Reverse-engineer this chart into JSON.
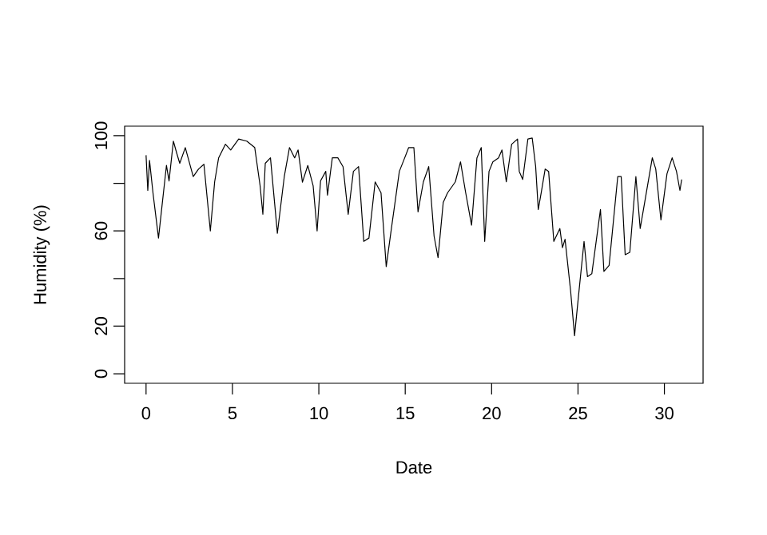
{
  "chart_data": {
    "type": "line",
    "xlabel": "Date",
    "ylabel": "Humidity (%)",
    "color": "#000000",
    "x": [
      0,
      0.1,
      0.2,
      0.4,
      0.72,
      0.9,
      1.18,
      1.33,
      1.58,
      1.8,
      1.95,
      2.27,
      2.73,
      3.04,
      3.35,
      3.72,
      3.97,
      4.2,
      4.59,
      4.9,
      5.36,
      5.83,
      6.29,
      6.6,
      6.76,
      6.9,
      7.2,
      7.6,
      8.0,
      8.3,
      8.6,
      8.8,
      9.05,
      9.36,
      9.67,
      9.9,
      10.1,
      10.4,
      10.5,
      10.78,
      11.1,
      11.4,
      11.7,
      12.0,
      12.3,
      12.6,
      12.9,
      13.26,
      13.6,
      13.9,
      14.2,
      14.66,
      14.97,
      15.2,
      15.5,
      15.74,
      16.05,
      16.36,
      16.67,
      16.9,
      17.2,
      17.45,
      17.9,
      18.2,
      18.5,
      18.84,
      19.15,
      19.4,
      19.6,
      19.85,
      20.07,
      20.4,
      20.6,
      20.85,
      21.16,
      21.5,
      21.6,
      21.8,
      22.1,
      22.35,
      22.55,
      22.7,
      22.87,
      23.1,
      23.3,
      23.6,
      23.95,
      24.1,
      24.25,
      24.57,
      24.8,
      25.0,
      25.35,
      25.55,
      25.8,
      26.3,
      26.5,
      26.8,
      27.3,
      27.5,
      27.73,
      28.0,
      28.35,
      28.6,
      29.3,
      29.5,
      29.8,
      30.15,
      30.45,
      30.7,
      30.9,
      31.0
    ],
    "values": [
      91.8,
      77,
      89.6,
      76,
      57,
      69,
      87.5,
      81,
      97.7,
      92,
      88.4,
      95,
      82.8,
      86,
      88,
      60,
      80.6,
      90.7,
      96.4,
      94,
      98.6,
      97.7,
      95,
      79,
      67,
      88.4,
      90.7,
      59,
      82.8,
      95,
      90.7,
      94,
      80.5,
      87.5,
      79,
      60,
      81,
      85,
      75,
      90.7,
      90.7,
      87,
      67,
      85,
      87,
      55.6,
      57,
      80.6,
      76,
      45,
      61,
      85,
      90.7,
      95,
      95,
      68,
      80.6,
      87,
      57.8,
      48.8,
      72,
      76,
      80.6,
      89,
      76,
      62.4,
      90.7,
      95,
      55.6,
      85,
      89,
      90.7,
      94,
      80.6,
      96.4,
      98.6,
      85,
      81.6,
      98.6,
      99,
      87,
      69,
      76,
      86,
      85,
      55.6,
      61,
      53,
      56.5,
      35,
      16,
      30.6,
      55.6,
      40.8,
      42,
      69,
      43,
      45.5,
      82.8,
      82.8,
      50,
      51,
      82.8,
      61,
      90.7,
      86,
      64.6,
      84,
      90.7,
      85,
      77,
      81.6
    ],
    "xlim": [
      -1.24,
      32.24
    ],
    "ylim": [
      -4,
      104
    ],
    "xticks": [
      0,
      5,
      10,
      15,
      20,
      25,
      30
    ],
    "yticks": [
      0,
      20,
      {
        "value": 40,
        "label": null
      },
      60,
      {
        "value": 80,
        "label": null
      },
      100
    ]
  }
}
